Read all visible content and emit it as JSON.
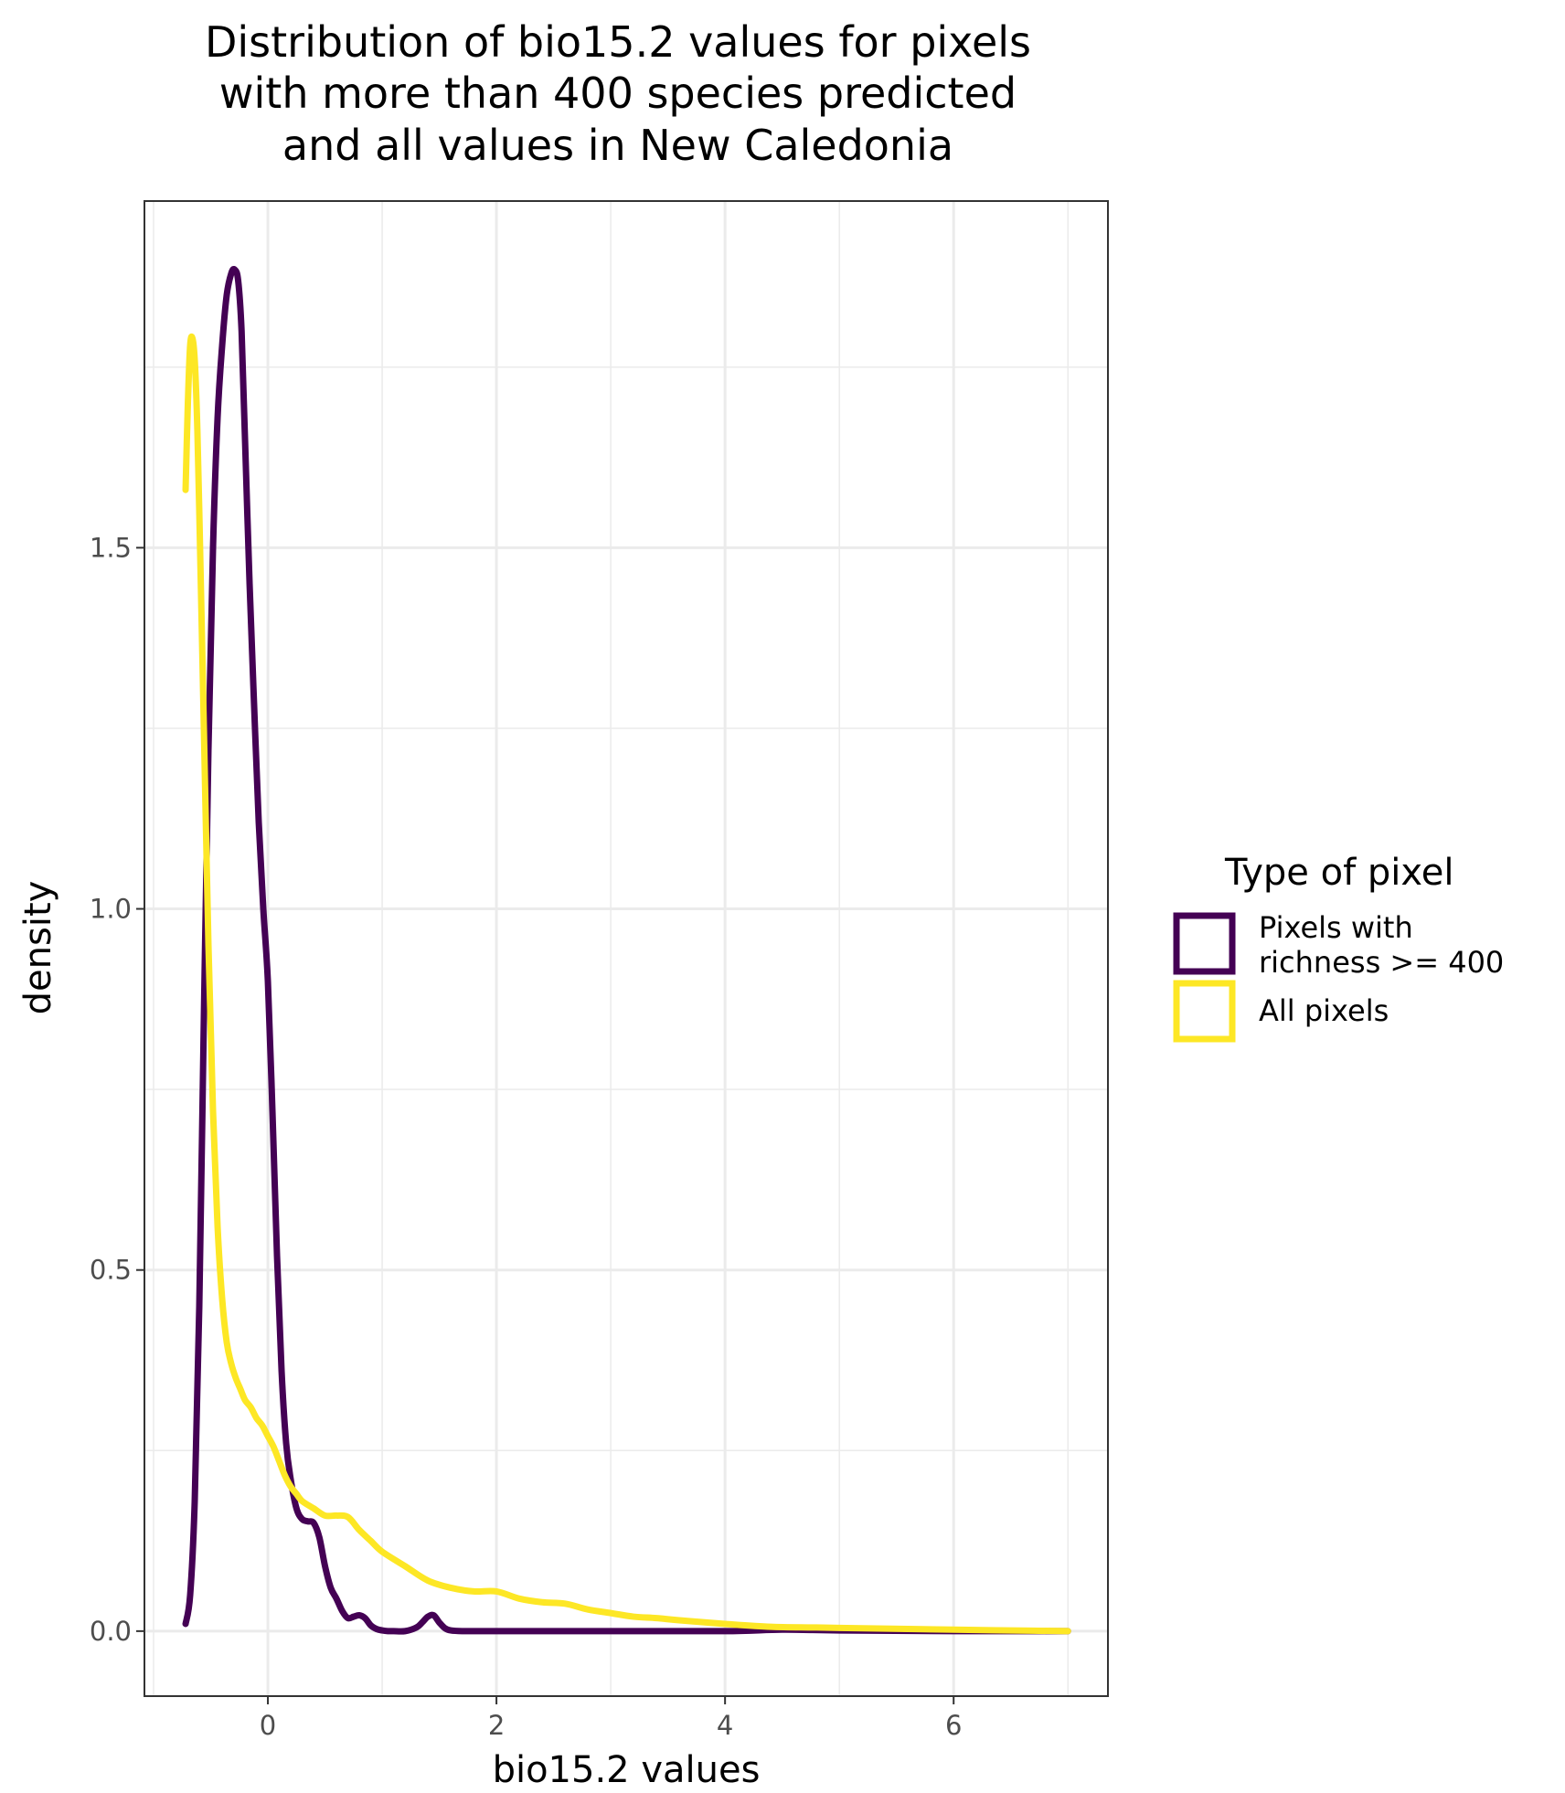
{
  "chart_data": {
    "type": "line",
    "title_lines": [
      "Distribution of bio15.2 values for pixels",
      "with more than 400 species predicted",
      "and all values in New Caledonia"
    ],
    "xlabel": "bio15.2 values",
    "ylabel": "density",
    "xlim": [
      -1.08,
      7.35
    ],
    "ylim": [
      -0.09,
      1.98
    ],
    "x_ticks": [
      0,
      2,
      4,
      6
    ],
    "x_tick_labels": [
      "0",
      "2",
      "4",
      "6"
    ],
    "y_ticks": [
      0.0,
      0.5,
      1.0,
      1.5
    ],
    "y_tick_labels": [
      "0.0",
      "0.5",
      "1.0",
      "1.5"
    ],
    "grid": true,
    "legend": {
      "title": "Type of pixel",
      "position": "right",
      "items": [
        {
          "lines": [
            "Pixels with",
            "richness >= 400"
          ],
          "color": "#440154"
        },
        {
          "lines": [
            "All pixels"
          ],
          "color": "#FDE725"
        }
      ]
    },
    "series": [
      {
        "name": "Pixels with richness >= 400",
        "color": "#440154",
        "x": [
          -0.72,
          -0.68,
          -0.64,
          -0.6,
          -0.56,
          -0.52,
          -0.48,
          -0.44,
          -0.4,
          -0.36,
          -0.32,
          -0.29,
          -0.26,
          -0.23,
          -0.2,
          -0.16,
          -0.12,
          -0.08,
          -0.04,
          0.0,
          0.04,
          0.08,
          0.12,
          0.16,
          0.2,
          0.25,
          0.3,
          0.35,
          0.4,
          0.45,
          0.5,
          0.55,
          0.6,
          0.65,
          0.7,
          0.75,
          0.8,
          0.85,
          0.9,
          0.95,
          1.0,
          1.05,
          1.1,
          1.2,
          1.3,
          1.35,
          1.4,
          1.45,
          1.5,
          1.55,
          1.6,
          1.7,
          2.0,
          3.0,
          4.0,
          4.5,
          5.0,
          6.0,
          7.0
        ],
        "y": [
          0.01,
          0.05,
          0.18,
          0.45,
          0.85,
          1.22,
          1.5,
          1.68,
          1.78,
          1.85,
          1.88,
          1.885,
          1.87,
          1.8,
          1.65,
          1.45,
          1.28,
          1.12,
          1.0,
          0.9,
          0.72,
          0.52,
          0.36,
          0.26,
          0.21,
          0.17,
          0.155,
          0.152,
          0.15,
          0.13,
          0.09,
          0.06,
          0.045,
          0.028,
          0.018,
          0.02,
          0.022,
          0.018,
          0.008,
          0.003,
          0.001,
          0.0,
          0.0,
          0.0,
          0.005,
          0.012,
          0.02,
          0.022,
          0.012,
          0.004,
          0.001,
          0.0,
          0.0,
          0.0,
          0.0,
          0.002,
          0.001,
          0.0,
          0.0
        ]
      },
      {
        "name": "All pixels",
        "color": "#FDE725",
        "x": [
          -0.72,
          -0.7,
          -0.68,
          -0.66,
          -0.64,
          -0.62,
          -0.6,
          -0.56,
          -0.52,
          -0.48,
          -0.44,
          -0.4,
          -0.36,
          -0.32,
          -0.28,
          -0.24,
          -0.2,
          -0.15,
          -0.1,
          -0.05,
          0.0,
          0.05,
          0.1,
          0.15,
          0.2,
          0.25,
          0.3,
          0.4,
          0.5,
          0.6,
          0.7,
          0.8,
          0.9,
          1.0,
          1.2,
          1.4,
          1.6,
          1.8,
          2.0,
          2.2,
          2.4,
          2.6,
          2.8,
          3.0,
          3.2,
          3.4,
          3.6,
          4.0,
          4.4,
          4.8,
          5.2,
          5.6,
          6.0,
          6.5,
          7.0
        ],
        "y": [
          1.58,
          1.7,
          1.78,
          1.79,
          1.76,
          1.68,
          1.55,
          1.25,
          0.95,
          0.72,
          0.56,
          0.46,
          0.4,
          0.37,
          0.35,
          0.335,
          0.32,
          0.31,
          0.295,
          0.285,
          0.27,
          0.255,
          0.235,
          0.215,
          0.2,
          0.19,
          0.18,
          0.17,
          0.16,
          0.16,
          0.158,
          0.14,
          0.125,
          0.11,
          0.09,
          0.07,
          0.06,
          0.055,
          0.055,
          0.045,
          0.04,
          0.038,
          0.03,
          0.025,
          0.02,
          0.018,
          0.015,
          0.01,
          0.006,
          0.005,
          0.004,
          0.003,
          0.002,
          0.001,
          0.0
        ]
      }
    ]
  }
}
